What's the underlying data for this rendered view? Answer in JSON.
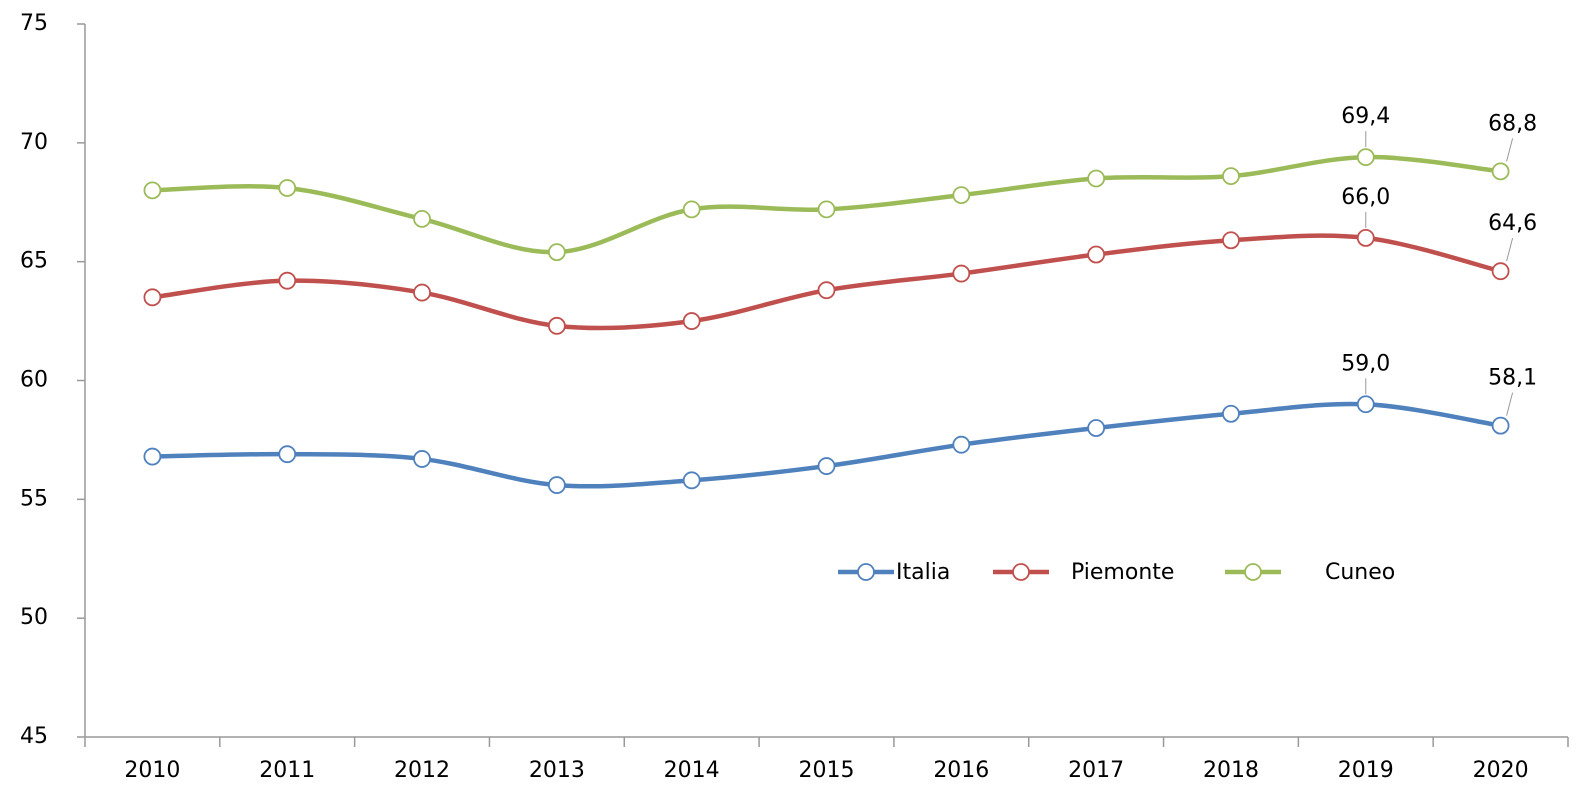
{
  "chart_data": {
    "type": "line",
    "categories": [
      "2010",
      "2011",
      "2012",
      "2013",
      "2014",
      "2015",
      "2016",
      "2017",
      "2018",
      "2019",
      "2020"
    ],
    "series": [
      {
        "name": "Italia",
        "color": "#4f81bd",
        "values": [
          56.8,
          56.9,
          56.7,
          55.6,
          55.8,
          56.4,
          57.3,
          58.0,
          58.6,
          59.0,
          58.1
        ],
        "value_labels": [
          null,
          null,
          null,
          null,
          null,
          null,
          null,
          null,
          null,
          "59,0",
          "58,1"
        ]
      },
      {
        "name": "Piemonte",
        "color": "#c0504d",
        "values": [
          63.5,
          64.2,
          63.7,
          62.3,
          62.5,
          63.8,
          64.5,
          65.3,
          65.9,
          66.0,
          64.6
        ],
        "value_labels": [
          null,
          null,
          null,
          null,
          null,
          null,
          null,
          null,
          null,
          "66,0",
          "64,6"
        ]
      },
      {
        "name": "Cuneo",
        "color": "#9bbb59",
        "values": [
          68.0,
          68.1,
          66.8,
          65.4,
          67.2,
          67.2,
          67.8,
          68.5,
          68.6,
          69.4,
          68.8
        ],
        "value_labels": [
          null,
          null,
          null,
          null,
          null,
          null,
          null,
          null,
          null,
          "69,4",
          "68,8"
        ]
      }
    ],
    "ylim": [
      45,
      75
    ],
    "yticks": [
      45,
      50,
      55,
      60,
      65,
      70,
      75
    ],
    "grid": false,
    "smooth": true
  }
}
